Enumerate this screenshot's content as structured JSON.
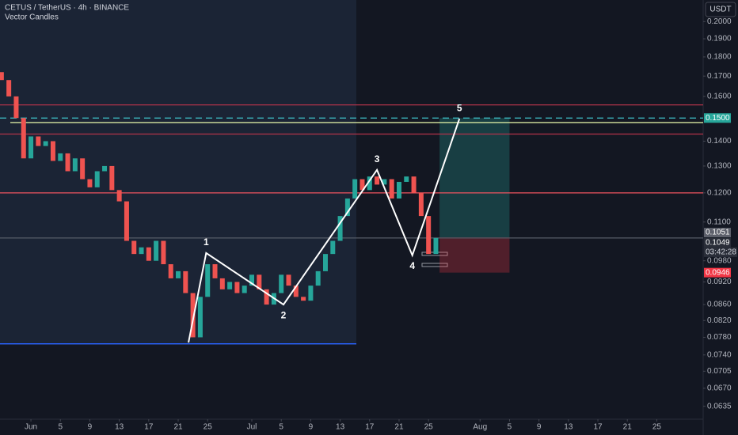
{
  "chart_data": {
    "type": "candlestick",
    "title": "CETUS / TetherUS · 4h · BINANCE",
    "subtitle": "Vector Candles",
    "currency": "USDT",
    "log_scale": true,
    "xlim": [
      -4.2,
      91.3
    ],
    "ylim": [
      0.0611,
      0.2133
    ],
    "xticks": [
      {
        "value": 0,
        "label": "Jun"
      },
      {
        "value": 4,
        "label": "5"
      },
      {
        "value": 8,
        "label": "9"
      },
      {
        "value": 12,
        "label": "13"
      },
      {
        "value": 16,
        "label": "17"
      },
      {
        "value": 20,
        "label": "21"
      },
      {
        "value": 24,
        "label": "25"
      },
      {
        "value": 30,
        "label": "Jul"
      },
      {
        "value": 34,
        "label": "5"
      },
      {
        "value": 38,
        "label": "9"
      },
      {
        "value": 42,
        "label": "13"
      },
      {
        "value": 46,
        "label": "17"
      },
      {
        "value": 50,
        "label": "21"
      },
      {
        "value": 54,
        "label": "25"
      },
      {
        "value": 61,
        "label": "Aug"
      },
      {
        "value": 65,
        "label": "5"
      },
      {
        "value": 69,
        "label": "9"
      },
      {
        "value": 73,
        "label": "13"
      },
      {
        "value": 77,
        "label": "17"
      },
      {
        "value": 81,
        "label": "21"
      },
      {
        "value": 85,
        "label": "25"
      }
    ],
    "yticks": [
      {
        "value": 0.2,
        "label": "0.2000"
      },
      {
        "value": 0.19,
        "label": "0.1900"
      },
      {
        "value": 0.18,
        "label": "0.1800"
      },
      {
        "value": 0.17,
        "label": "0.1700"
      },
      {
        "value": 0.16,
        "label": "0.1600"
      },
      {
        "value": 0.14,
        "label": "0.1400"
      },
      {
        "value": 0.13,
        "label": "0.1300"
      },
      {
        "value": 0.12,
        "label": "0.1200"
      },
      {
        "value": 0.11,
        "label": "0.1100"
      },
      {
        "value": 0.098,
        "label": "0.0980"
      },
      {
        "value": 0.092,
        "label": "0.0920"
      },
      {
        "value": 0.086,
        "label": "0.0860"
      },
      {
        "value": 0.082,
        "label": "0.0820"
      },
      {
        "value": 0.078,
        "label": "0.0780"
      },
      {
        "value": 0.074,
        "label": "0.0740"
      },
      0.0705,
      {
        "value": 0.067,
        "label": "0.0670"
      },
      0.0635
    ],
    "x": [
      -4,
      -3,
      -2,
      -1,
      0,
      1,
      2,
      3,
      4,
      5,
      6,
      7,
      8,
      9,
      10,
      11,
      12,
      13,
      14,
      15,
      16,
      17,
      18,
      19,
      20,
      21,
      22,
      23,
      24,
      25,
      26,
      27,
      28,
      29,
      30,
      31,
      32,
      33,
      34,
      35,
      36,
      37,
      38,
      39,
      40,
      41,
      42,
      43,
      44,
      45,
      46,
      47,
      48,
      49,
      50,
      51,
      52,
      53,
      54,
      55
    ],
    "open": [
      0.172,
      0.168,
      0.16,
      0.15,
      0.133,
      0.142,
      0.138,
      0.14,
      0.132,
      0.135,
      0.128,
      0.133,
      0.125,
      0.122,
      0.128,
      0.13,
      0.121,
      0.117,
      0.104,
      0.1,
      0.102,
      0.098,
      0.104,
      0.097,
      0.093,
      0.095,
      0.089,
      0.078,
      0.088,
      0.097,
      0.093,
      0.09,
      0.092,
      0.089,
      0.091,
      0.094,
      0.09,
      0.086,
      0.089,
      0.094,
      0.091,
      0.088,
      0.087,
      0.091,
      0.095,
      0.1,
      0.104,
      0.112,
      0.118,
      0.125,
      0.121,
      0.126,
      0.123,
      0.125,
      0.118,
      0.124,
      0.126,
      0.12,
      0.112,
      0.1
    ],
    "close": [
      0.168,
      0.16,
      0.15,
      0.133,
      0.142,
      0.138,
      0.14,
      0.132,
      0.135,
      0.128,
      0.133,
      0.125,
      0.122,
      0.128,
      0.13,
      0.121,
      0.117,
      0.104,
      0.1,
      0.102,
      0.098,
      0.104,
      0.097,
      0.093,
      0.095,
      0.089,
      0.078,
      0.088,
      0.097,
      0.093,
      0.09,
      0.092,
      0.089,
      0.091,
      0.094,
      0.09,
      0.086,
      0.089,
      0.094,
      0.091,
      0.088,
      0.087,
      0.091,
      0.095,
      0.1,
      0.104,
      0.112,
      0.118,
      0.125,
      0.121,
      0.126,
      0.123,
      0.125,
      0.118,
      0.124,
      0.126,
      0.12,
      0.112,
      0.1,
      0.1049
    ],
    "up_color": "#26a69a",
    "down_color": "#ef5350",
    "levels": [
      {
        "value": 0.156,
        "color": "#b2334a",
        "from": -4.2
      },
      {
        "value": 0.15,
        "color": "#3fc1c9",
        "from": -4.2,
        "dashed": true
      },
      {
        "value": 0.148,
        "color": "#d6e5a0",
        "from": -2.8
      },
      {
        "value": 0.143,
        "color": "#b2334a",
        "from": -4.2
      },
      {
        "value": 0.12,
        "color": "#f0545f",
        "from": -4.2
      },
      {
        "value": 0.0765,
        "color": "#2962ff",
        "to": 44.2
      },
      {
        "value": 0.1049,
        "color": "#555b66",
        "from": -4.2
      }
    ],
    "position": {
      "x": [
        55.5,
        65
      ],
      "entry": 0.1051,
      "target": 0.15,
      "stop": 0.0946
    },
    "wave": {
      "labels": [
        null,
        "1",
        "2",
        "3",
        "4",
        "5"
      ],
      "x": [
        21.4,
        23.8,
        34.3,
        47.0,
        51.8,
        58.2
      ],
      "y": [
        0.0768,
        0.1003,
        0.086,
        0.1285,
        0.0996,
        0.1497
      ]
    },
    "price_tags": [
      {
        "value": 0.15,
        "label": "0.1500",
        "color": "#26a69a"
      },
      {
        "value": 0.1051,
        "label": "0.1051",
        "color": "#5d606b"
      },
      {
        "value": 0.1049,
        "label": "0.1049",
        "color": "#2a2e39"
      },
      {
        "value": 0.0946,
        "label": "0.0946",
        "color": "#f23645"
      }
    ],
    "countdown": "03:42:28"
  }
}
